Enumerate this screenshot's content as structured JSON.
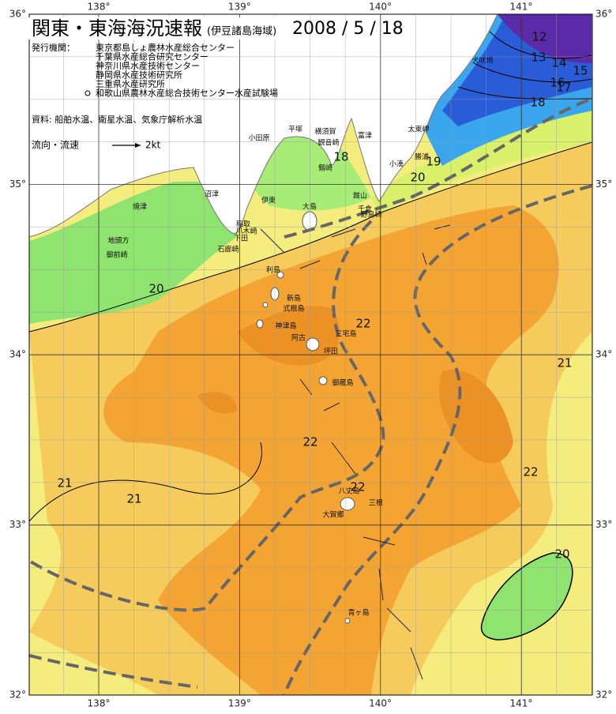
{
  "header": {
    "title": "関東・東海海況速報",
    "subtitle": "(伊豆諸島海域)",
    "date": "2008 / 5 / 18"
  },
  "agencies": {
    "label": "発行機関：",
    "items": [
      "東京都島しょ農林水産総合センター",
      "千葉県水産総合研究センター",
      "神奈川県水産技術センター",
      "静岡県水産技術研究所",
      "三重県水産研究所",
      "和歌山県農林水産総合技術センター水産試験場"
    ]
  },
  "source": "資料: 船舶水温、衛星水温、気象庁解析水温",
  "legend": {
    "label": "流向・流速",
    "scale": "2kt"
  },
  "axes": {
    "lon": [
      "138°",
      "139°",
      "140°",
      "141°"
    ],
    "lat": [
      "36°",
      "35°",
      "34°",
      "33°",
      "32°"
    ]
  },
  "isotherm_labels": [
    12,
    13,
    14,
    15,
    16,
    17,
    18,
    19,
    20,
    18,
    20,
    22,
    21,
    22,
    22,
    22,
    21,
    21,
    20
  ],
  "places": [
    "犬吠埼",
    "太東岬",
    "勝浦",
    "小湊",
    "館山",
    "千倉",
    "野島崎",
    "富津",
    "横須賀",
    "観音崎",
    "平塚",
    "剱崎",
    "小田原",
    "伊東",
    "沼津",
    "焼津",
    "地頭方",
    "御前崎",
    "爪木崎",
    "下田",
    "石廊崎",
    "稲取",
    "大島",
    "利島",
    "新島",
    "式根島",
    "神津島",
    "三宅島",
    "阿古",
    "坪田",
    "御蔵島",
    "八丈島",
    "三根",
    "大賀郷",
    "青ヶ島"
  ]
}
